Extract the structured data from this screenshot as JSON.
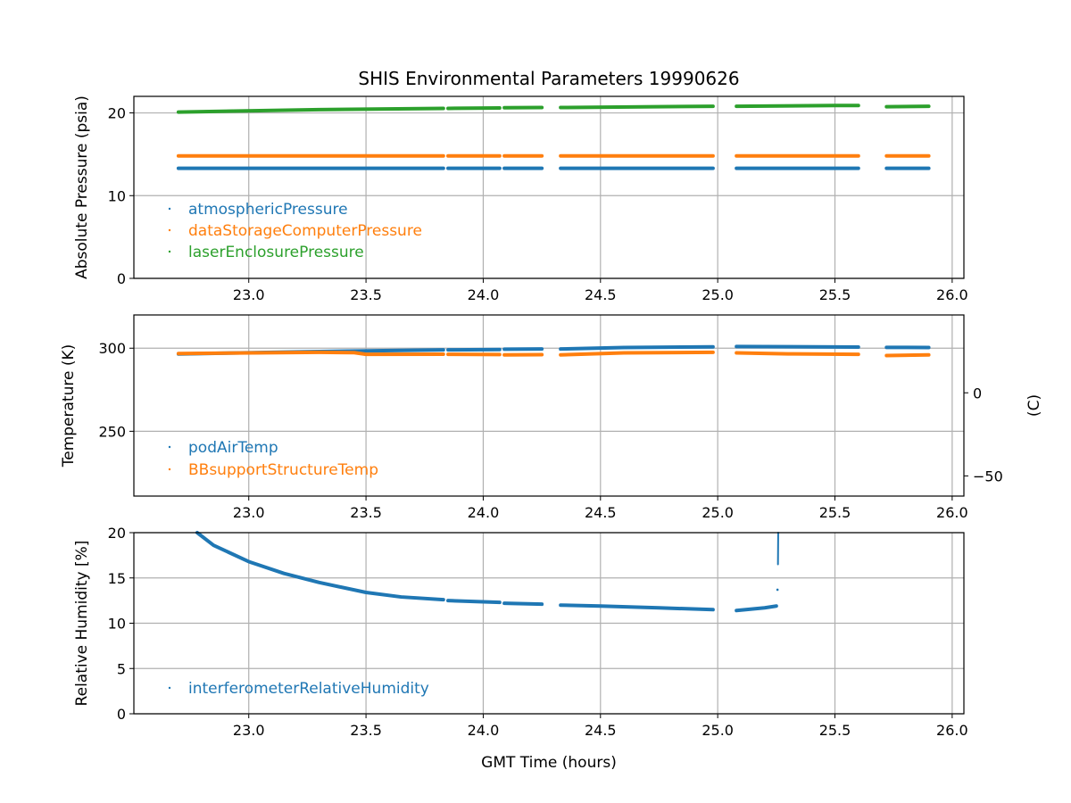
{
  "chart_data": {
    "type": "scatter",
    "title": "SHIS Environmental Parameters 19990626",
    "xlabel": "GMT Time (hours)",
    "xlim": [
      22.51,
      26.05
    ],
    "xticks": [
      "23.0",
      "23.5",
      "24.0",
      "24.5",
      "25.0",
      "25.5",
      "26.0"
    ],
    "grid": true,
    "colors": {
      "blue": "#1f77b4",
      "orange": "#ff7f0e",
      "green": "#2ca02c"
    },
    "panels": [
      {
        "ylabel": "Absolute Pressure (psia)",
        "ylim": [
          0,
          22
        ],
        "yticks": [
          "0",
          "10",
          "20"
        ],
        "legend_placement": "lower-left",
        "series": [
          {
            "name": "atmosphericPressure",
            "color": "#1f77b4",
            "points": [
              [
                22.7,
                13.3
              ],
              [
                23.83,
                13.3
              ],
              null,
              [
                23.85,
                13.3
              ],
              [
                24.07,
                13.3
              ],
              null,
              [
                24.09,
                13.3
              ],
              [
                24.25,
                13.3
              ],
              null,
              [
                24.33,
                13.3
              ],
              [
                24.98,
                13.3
              ],
              null,
              [
                25.08,
                13.3
              ],
              [
                25.6,
                13.3
              ],
              null,
              [
                25.72,
                13.3
              ],
              [
                25.9,
                13.3
              ]
            ]
          },
          {
            "name": "dataStorageComputerPressure",
            "color": "#ff7f0e",
            "points": [
              [
                22.7,
                14.8
              ],
              [
                23.83,
                14.8
              ],
              null,
              [
                23.85,
                14.8
              ],
              [
                24.07,
                14.8
              ],
              null,
              [
                24.09,
                14.8
              ],
              [
                24.25,
                14.8
              ],
              null,
              [
                24.33,
                14.8
              ],
              [
                24.98,
                14.8
              ],
              null,
              [
                25.08,
                14.8
              ],
              [
                25.6,
                14.8
              ],
              null,
              [
                25.72,
                14.8
              ],
              [
                25.9,
                14.8
              ]
            ]
          },
          {
            "name": "laserEnclosurePressure",
            "color": "#2ca02c",
            "points": [
              [
                22.7,
                20.1
              ],
              [
                23.3,
                20.4
              ],
              [
                23.83,
                20.55
              ],
              null,
              [
                23.85,
                20.55
              ],
              [
                24.07,
                20.6
              ],
              null,
              [
                24.09,
                20.62
              ],
              [
                24.25,
                20.65
              ],
              null,
              [
                24.33,
                20.65
              ],
              [
                24.98,
                20.8
              ],
              null,
              [
                25.08,
                20.8
              ],
              [
                25.5,
                20.9
              ],
              [
                25.6,
                20.9
              ],
              null,
              [
                25.72,
                20.75
              ],
              [
                25.9,
                20.8
              ]
            ]
          }
        ]
      },
      {
        "ylabel": "Temperature (K)",
        "ylim": [
          211,
          320
        ],
        "yticks": [
          "250",
          "300"
        ],
        "right_axis": {
          "label": "(C)",
          "ticks": [
            "0",
            "−50"
          ]
        },
        "legend_placement": "lower-left",
        "series": [
          {
            "name": "podAirTemp",
            "color": "#1f77b4",
            "points": [
              [
                22.7,
                296.5
              ],
              [
                23.3,
                298.0
              ],
              [
                23.83,
                299.0
              ],
              null,
              [
                23.85,
                299.0
              ],
              [
                24.07,
                299.2
              ],
              null,
              [
                24.09,
                299.4
              ],
              [
                24.25,
                299.5
              ],
              null,
              [
                24.33,
                299.5
              ],
              [
                24.6,
                300.4
              ],
              [
                24.98,
                300.8
              ],
              null,
              [
                25.08,
                301.0
              ],
              [
                25.6,
                300.7
              ],
              null,
              [
                25.72,
                300.5
              ],
              [
                25.9,
                300.4
              ]
            ]
          },
          {
            "name": "BBsupportStructureTemp",
            "color": "#ff7f0e",
            "points": [
              [
                22.7,
                296.8
              ],
              [
                23.3,
                297.5
              ],
              [
                23.45,
                297.3
              ],
              [
                23.5,
                296.3
              ],
              [
                23.83,
                296.4
              ],
              null,
              [
                23.85,
                296.3
              ],
              [
                24.07,
                296.2
              ],
              null,
              [
                24.09,
                296.0
              ],
              [
                24.25,
                296.1
              ],
              null,
              [
                24.33,
                296.0
              ],
              [
                24.6,
                297.2
              ],
              [
                24.98,
                297.5
              ],
              null,
              [
                25.08,
                297.2
              ],
              [
                25.3,
                296.6
              ],
              [
                25.6,
                296.3
              ],
              null,
              [
                25.72,
                295.6
              ],
              [
                25.9,
                296.0
              ]
            ]
          }
        ]
      },
      {
        "ylabel": "Relative Humidity [%]",
        "ylim": [
          0,
          20
        ],
        "yticks": [
          "0",
          "5",
          "10",
          "15",
          "20"
        ],
        "legend_placement": "lower-left",
        "series": [
          {
            "name": "interferometerRelativeHumidity",
            "color": "#1f77b4",
            "points": [
              [
                22.78,
                20.0
              ],
              [
                22.85,
                18.6
              ],
              [
                23.0,
                16.8
              ],
              [
                23.15,
                15.5
              ],
              [
                23.3,
                14.5
              ],
              [
                23.5,
                13.4
              ],
              [
                23.65,
                12.9
              ],
              [
                23.83,
                12.6
              ],
              null,
              [
                23.85,
                12.5
              ],
              [
                24.07,
                12.3
              ],
              null,
              [
                24.09,
                12.2
              ],
              [
                24.25,
                12.1
              ],
              null,
              [
                24.33,
                12.0
              ],
              [
                24.5,
                11.9
              ],
              [
                24.75,
                11.7
              ],
              [
                24.98,
                11.5
              ],
              null,
              [
                25.08,
                11.4
              ],
              [
                25.2,
                11.7
              ],
              [
                25.25,
                11.9
              ],
              null,
              [
                25.255,
                13.7
              ],
              null,
              [
                25.257,
                16.5
              ],
              [
                25.258,
                20.0
              ]
            ]
          }
        ]
      }
    ]
  }
}
